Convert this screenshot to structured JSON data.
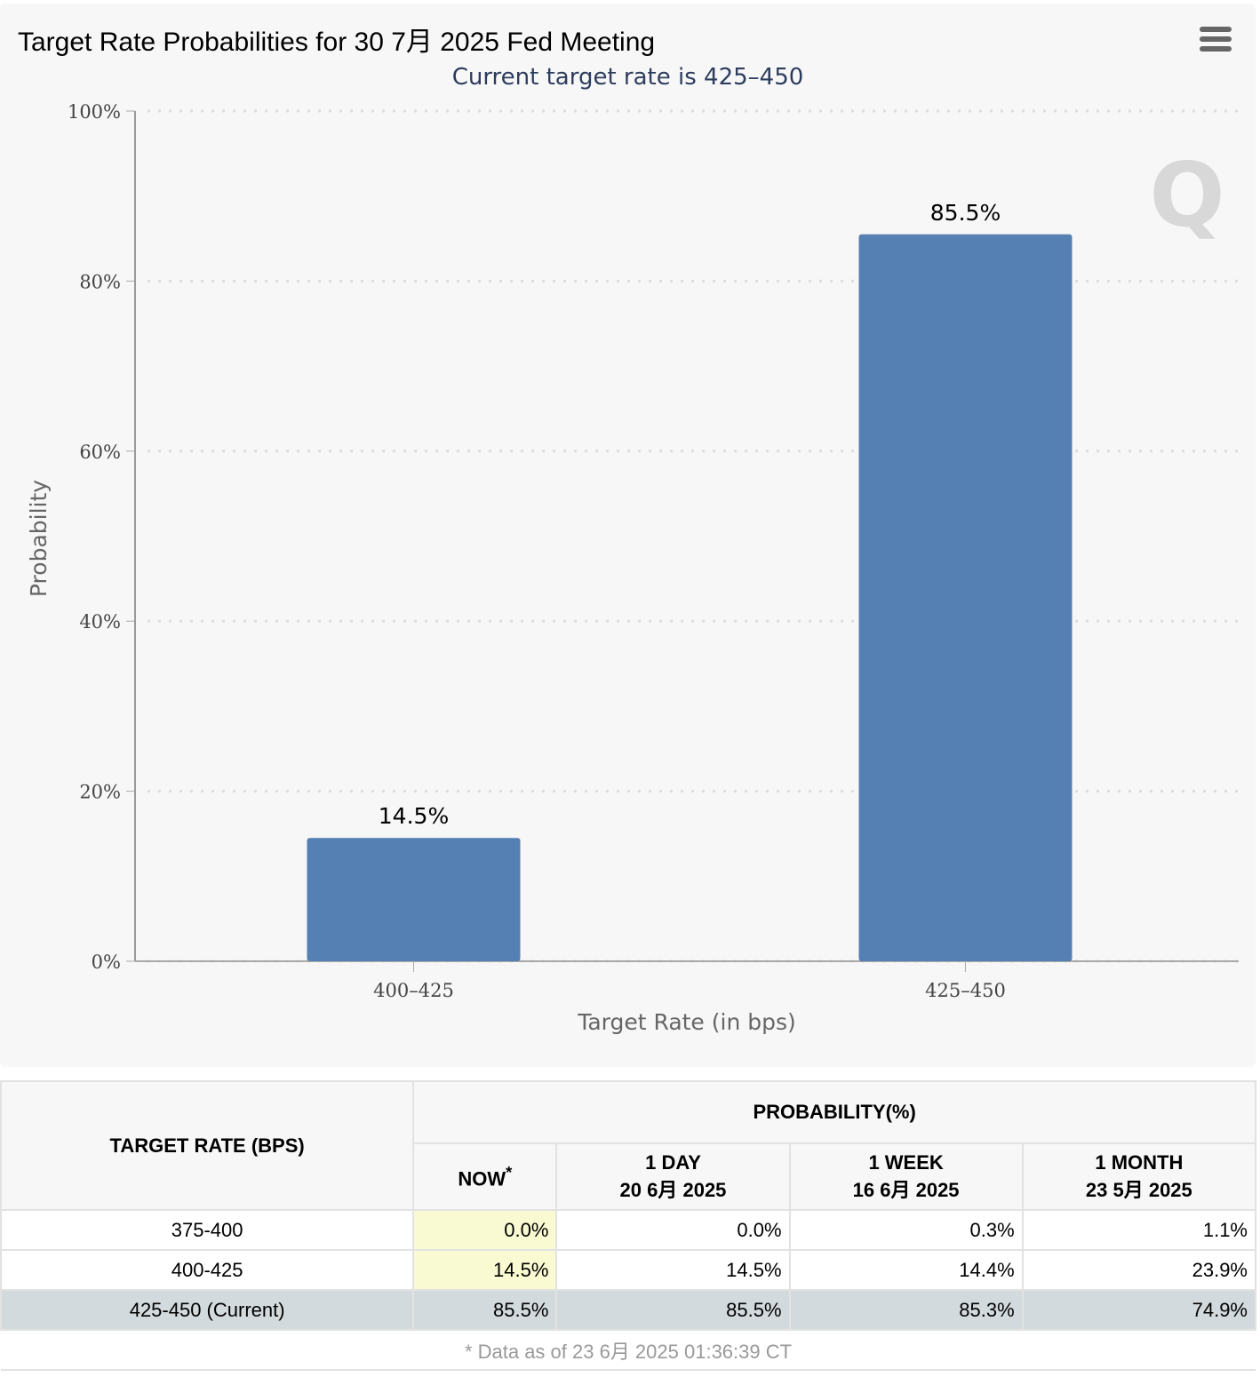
{
  "chart_data": {
    "type": "bar",
    "title": "Target Rate Probabilities for 30 7月 2025 Fed Meeting",
    "subtitle": "Current target rate is 425–450",
    "categories": [
      "400–425",
      "425–450"
    ],
    "values": [
      14.5,
      85.5
    ],
    "data_labels": [
      "14.5%",
      "85.5%"
    ],
    "xlabel": "Target Rate (in bps)",
    "ylabel": "Probability",
    "ylim": [
      0,
      100
    ],
    "yticks": [
      "0%",
      "20%",
      "40%",
      "60%",
      "80%",
      "100%"
    ],
    "grid": true,
    "bar_color": "#5480b3",
    "watermark": "Q"
  },
  "menu_icon": "hamburger-icon",
  "table": {
    "rate_header": "TARGET RATE (BPS)",
    "prob_header": "PROBABILITY(%)",
    "cols": [
      {
        "l1": "NOW",
        "l2": "",
        "sup": "*"
      },
      {
        "l1": "1 DAY",
        "l2": "20 6月 2025"
      },
      {
        "l1": "1 WEEK",
        "l2": "16 6月 2025"
      },
      {
        "l1": "1 MONTH",
        "l2": "23 5月 2025"
      }
    ],
    "rows": [
      {
        "rate": "375-400",
        "v": [
          "0.0%",
          "0.0%",
          "0.3%",
          "1.1%"
        ]
      },
      {
        "rate": "400-425",
        "v": [
          "14.5%",
          "14.5%",
          "14.4%",
          "23.9%"
        ]
      },
      {
        "rate": "425-450 (Current)",
        "v": [
          "85.5%",
          "85.5%",
          "85.3%",
          "74.9%"
        ]
      }
    ],
    "footnote": "* Data as of 23 6月 2025 01:36:39 CT"
  }
}
